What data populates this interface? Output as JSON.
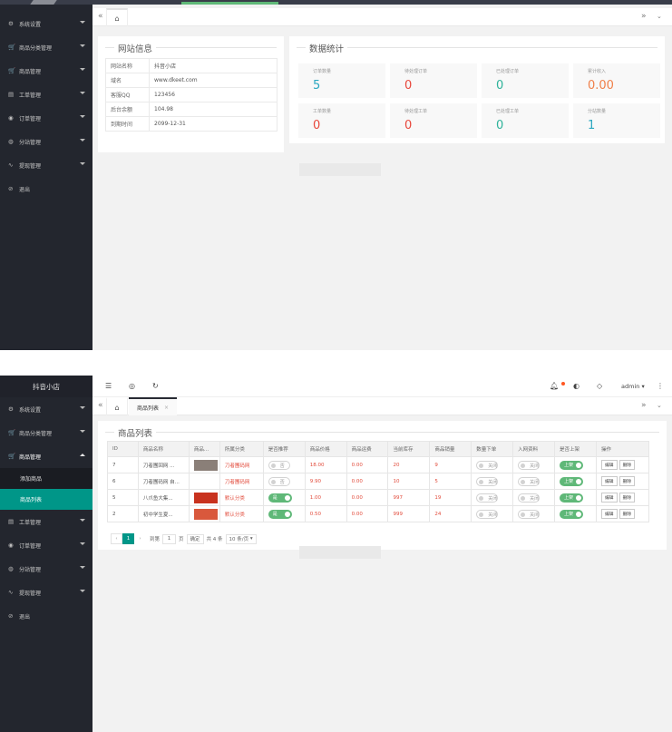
{
  "screen1": {
    "sidebar": [
      {
        "icon": "gear-icon",
        "glyph": "⚙",
        "label": "系统设置"
      },
      {
        "icon": "cart-icon",
        "glyph": "🛒",
        "label": "商品分类管理"
      },
      {
        "icon": "cart-icon",
        "glyph": "🛒",
        "label": "商品管理"
      },
      {
        "icon": "ticket-icon",
        "glyph": "▤",
        "label": "工单管理"
      },
      {
        "icon": "order-icon",
        "glyph": "◉",
        "label": "订单管理"
      },
      {
        "icon": "station-icon",
        "glyph": "◍",
        "label": "分站管理"
      },
      {
        "icon": "withdraw-icon",
        "glyph": "∿",
        "label": "提现管理"
      },
      {
        "icon": "logout-icon",
        "glyph": "⊘",
        "label": "退出"
      }
    ],
    "site_info": {
      "title": "网站信息",
      "rows": [
        {
          "key": "网站名称",
          "value": "抖音小店"
        },
        {
          "key": "域名",
          "value": "www.dkeet.com"
        },
        {
          "key": "客服QQ",
          "value": "123456"
        },
        {
          "key": "后台余额",
          "value": "104.98"
        },
        {
          "key": "到期时间",
          "value": "2099-12-31"
        }
      ]
    },
    "stats": {
      "title": "数据统计",
      "items": [
        {
          "label": "订单数量",
          "value": "5",
          "color": "#2ba7c0"
        },
        {
          "label": "待处理订单",
          "value": "0",
          "color": "#e8483c"
        },
        {
          "label": "已处理订单",
          "value": "0",
          "color": "#2eb39a"
        },
        {
          "label": "累计收入",
          "value": "0.00",
          "color": "#f0804a"
        },
        {
          "label": "工单数量",
          "value": "0",
          "color": "#e8483c"
        },
        {
          "label": "待处理工单",
          "value": "0",
          "color": "#e8483c"
        },
        {
          "label": "已处理工单",
          "value": "0",
          "color": "#2eb39a"
        },
        {
          "label": "分站数量",
          "value": "1",
          "color": "#2ba7c0"
        }
      ]
    }
  },
  "screen2": {
    "logo": "抖音小店",
    "header": {
      "user": "admin"
    },
    "tab": {
      "label": "商品列表",
      "close": "×"
    },
    "sidebar_top": [
      {
        "icon": "gear-icon",
        "glyph": "⚙",
        "label": "系统设置"
      },
      {
        "icon": "cart-icon",
        "glyph": "🛒",
        "label": "商品分类管理"
      }
    ],
    "sidebar_open": {
      "icon": "cart-icon",
      "glyph": "🛒",
      "label": "商品管理"
    },
    "sidebar_sub": [
      {
        "label": "添加商品"
      },
      {
        "label": "商品列表"
      }
    ],
    "sidebar_bottom": [
      {
        "icon": "ticket-icon",
        "glyph": "▤",
        "label": "工单管理"
      },
      {
        "icon": "order-icon",
        "glyph": "◉",
        "label": "订单管理"
      },
      {
        "icon": "station-icon",
        "glyph": "◍",
        "label": "分站管理"
      },
      {
        "icon": "withdraw-icon",
        "glyph": "∿",
        "label": "提现管理"
      },
      {
        "icon": "logout-icon",
        "glyph": "⊘",
        "label": "退出"
      }
    ],
    "list": {
      "title": "商品列表",
      "columns": [
        "ID",
        "商品名称",
        "商品...",
        "所属分类",
        "是否推荐",
        "商品价格",
        "商品运费",
        "当前库存",
        "商品销量",
        "数量下单",
        "入网资料",
        "是否上架",
        "操作"
      ],
      "rows": [
        {
          "id": "7",
          "name": "刀者團回网 ...",
          "thumb": "#8a7f78",
          "category": "刀者團码网",
          "recommend": "否",
          "rec_on": false,
          "price": "18.00",
          "freight": "0.00",
          "stock": "20",
          "sales": "9",
          "qty": "关闭",
          "netinfo": "关闭",
          "shelf": "上架"
        },
        {
          "id": "6",
          "name": "刀者團码网 自...",
          "thumb": "",
          "category": "刀者團码网",
          "recommend": "否",
          "rec_on": false,
          "price": "9.90",
          "freight": "0.00",
          "stock": "10",
          "sales": "5",
          "qty": "关闭",
          "netinfo": "关闭",
          "shelf": "上架"
        },
        {
          "id": "5",
          "name": "八爪鱼大集...",
          "thumb": "#c8321e",
          "category": "默认分类",
          "recommend": "是",
          "rec_on": true,
          "price": "1.00",
          "freight": "0.00",
          "stock": "997",
          "sales": "19",
          "qty": "关闭",
          "netinfo": "关闭",
          "shelf": "上架"
        },
        {
          "id": "2",
          "name": "初中学生夏...",
          "thumb": "#d9583c",
          "category": "默认分类",
          "recommend": "是",
          "rec_on": true,
          "price": "0.50",
          "freight": "0.00",
          "stock": "999",
          "sales": "24",
          "qty": "关闭",
          "netinfo": "关闭",
          "shelf": "上架"
        }
      ],
      "actions": {
        "edit": "编辑",
        "delete": "删除"
      },
      "pager": {
        "prev": "‹",
        "current": "1",
        "next": "›",
        "goto_label": "到第",
        "page_input": "1",
        "page_unit": "页",
        "confirm": "确定",
        "total": "共 4 条",
        "per_page": "10 条/页"
      }
    }
  }
}
